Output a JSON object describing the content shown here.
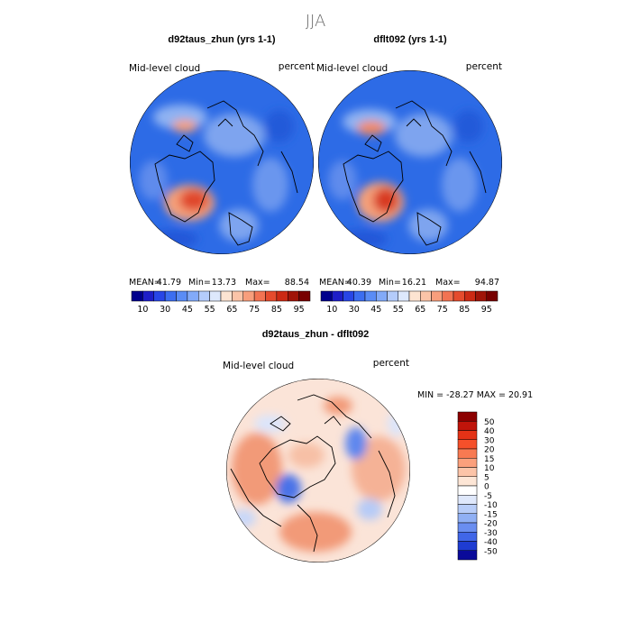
{
  "figure": {
    "title": "JJA"
  },
  "chart_data": [
    {
      "type": "heatmap",
      "projection": "north-polar-stereographic",
      "title": "d92taus_zhun (yrs 1-1)",
      "left_label": "Mid-level cloud",
      "right_label": "percent",
      "stats": {
        "mean_label": "MEAN=",
        "mean": "41.79",
        "min_label": "Min=",
        "min": "13.73",
        "max_label": "Max=",
        "max": "88.54"
      }
    },
    {
      "type": "heatmap",
      "projection": "north-polar-stereographic",
      "title": "dflt092 (yrs 1-1)",
      "left_label": "Mid-level cloud",
      "right_label": "percent",
      "stats": {
        "mean_label": "MEAN=",
        "mean": "40.39",
        "min_label": "Min=",
        "min": "16.21",
        "max_label": "Max=",
        "max": "94.87"
      }
    },
    {
      "type": "heatmap",
      "projection": "north-polar-stereographic",
      "title": "d92taus_zhun - dflt092",
      "left_label": "Mid-level cloud",
      "right_label": "percent",
      "range_text": "MIN = -28.27  MAX =  20.91",
      "stats": {
        "min": -28.27,
        "max": 20.91
      }
    }
  ],
  "colorbars": {
    "absolute": {
      "orientation": "horizontal",
      "tick_labels": [
        "10",
        "30",
        "45",
        "55",
        "65",
        "75",
        "85",
        "95"
      ],
      "colors": [
        "#00008c",
        "#1e1ec8",
        "#2846e6",
        "#3c6ef0",
        "#5a8cf5",
        "#82aaf8",
        "#b4ccfb",
        "#dde8fc",
        "#fde4d2",
        "#fbc4a8",
        "#f89e7c",
        "#f27352",
        "#e54b2d",
        "#cc2a14",
        "#a01408",
        "#780000"
      ]
    },
    "difference": {
      "orientation": "vertical",
      "tick_labels": [
        "50",
        "40",
        "30",
        "20",
        "15",
        "10",
        "5",
        "0",
        "-5",
        "-10",
        "-15",
        "-20",
        "-30",
        "-40",
        "-50"
      ],
      "colors": [
        "#8c0000",
        "#c0140a",
        "#e43216",
        "#f5502a",
        "#f87a52",
        "#fba07c",
        "#fcc4a8",
        "#fde6d6",
        "#ffffff",
        "#dfe8fb",
        "#b8cdf8",
        "#90b0f4",
        "#6a8ef0",
        "#4066e8",
        "#1e3cd2",
        "#0a0a9a"
      ]
    }
  },
  "colors": {
    "map_blue": "#2d6be6",
    "map_light": "#8fb2f2",
    "map_red": "#e0462a",
    "diff_pale": "#fbe4d8",
    "diff_red": "#f29a78",
    "diff_blue": "#5f87ee"
  }
}
